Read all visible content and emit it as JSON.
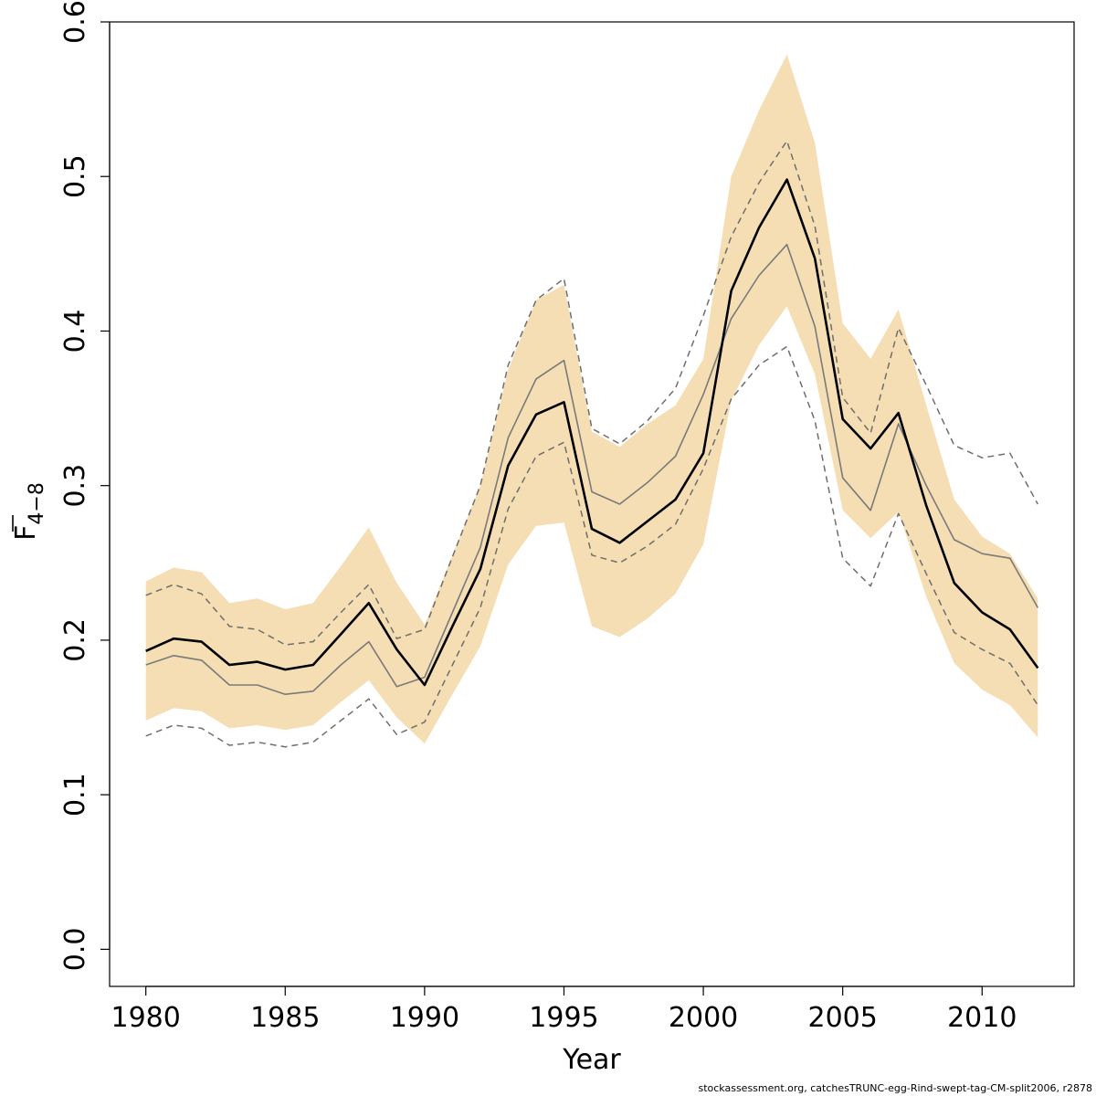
{
  "chart_data": {
    "type": "line",
    "xlabel": "Year",
    "ylabel_main": "F",
    "ylabel_sub": "4−8",
    "xlim": [
      1978.7,
      2013.3
    ],
    "ylim": [
      -0.024,
      0.6
    ],
    "xticks": [
      1980,
      1985,
      1990,
      1995,
      2000,
      2005,
      2010
    ],
    "yticks": [
      0.0,
      0.1,
      0.2,
      0.3,
      0.4,
      0.5,
      0.6
    ],
    "xtick_labels": [
      "1980",
      "1985",
      "1990",
      "1995",
      "2000",
      "2005",
      "2010"
    ],
    "ytick_labels": [
      "0.0",
      "0.1",
      "0.2",
      "0.3",
      "0.4",
      "0.5",
      "0.6"
    ],
    "grid": false,
    "legend": "none",
    "colors": {
      "band": "#f5deb3",
      "main_line": "#000000",
      "alt_line": "#7a7a7a",
      "dashed_line": "#6e6e6e",
      "frame": "#000000"
    },
    "x": [
      1980,
      1981,
      1982,
      1983,
      1984,
      1985,
      1986,
      1987,
      1988,
      1989,
      1990,
      1991,
      1992,
      1993,
      1994,
      1995,
      1996,
      1997,
      1998,
      1999,
      2000,
      2001,
      2002,
      2003,
      2004,
      2005,
      2006,
      2007,
      2008,
      2009,
      2010,
      2011,
      2012
    ],
    "band": {
      "upper": [
        0.238,
        0.247,
        0.244,
        0.224,
        0.227,
        0.22,
        0.224,
        0.248,
        0.273,
        0.237,
        0.21,
        0.255,
        0.3,
        0.375,
        0.42,
        0.43,
        0.335,
        0.325,
        0.34,
        0.352,
        0.382,
        0.5,
        0.543,
        0.579,
        0.522,
        0.405,
        0.382,
        0.414,
        0.352,
        0.291,
        0.267,
        0.256,
        0.227
      ],
      "lower": [
        0.148,
        0.156,
        0.154,
        0.143,
        0.145,
        0.142,
        0.145,
        0.16,
        0.174,
        0.15,
        0.133,
        0.165,
        0.196,
        0.249,
        0.274,
        0.276,
        0.209,
        0.202,
        0.214,
        0.23,
        0.262,
        0.355,
        0.391,
        0.416,
        0.372,
        0.284,
        0.266,
        0.283,
        0.228,
        0.185,
        0.168,
        0.158,
        0.137
      ]
    },
    "series": [
      {
        "style": "solid-thick",
        "values": [
          0.193,
          0.201,
          0.199,
          0.184,
          0.186,
          0.181,
          0.184,
          0.204,
          0.224,
          0.194,
          0.171,
          0.209,
          0.246,
          0.313,
          0.346,
          0.354,
          0.272,
          0.263,
          0.277,
          0.291,
          0.321,
          0.426,
          0.467,
          0.498,
          0.447,
          0.343,
          0.324,
          0.347,
          0.287,
          0.237,
          0.218,
          0.207,
          0.182
        ]
      },
      {
        "style": "solid-thin",
        "values": [
          0.184,
          0.19,
          0.187,
          0.171,
          0.171,
          0.165,
          0.167,
          0.184,
          0.199,
          0.17,
          0.176,
          0.218,
          0.26,
          0.331,
          0.369,
          0.381,
          0.296,
          0.288,
          0.302,
          0.319,
          0.359,
          0.408,
          0.436,
          0.456,
          0.403,
          0.305,
          0.284,
          0.34,
          0.3,
          0.265,
          0.256,
          0.253,
          0.221
        ]
      },
      {
        "style": "dashed",
        "values": [
          0.229,
          0.236,
          0.23,
          0.209,
          0.207,
          0.197,
          0.199,
          0.218,
          0.236,
          0.201,
          0.207,
          0.254,
          0.3,
          0.378,
          0.42,
          0.434,
          0.337,
          0.327,
          0.342,
          0.363,
          0.41,
          0.461,
          0.496,
          0.523,
          0.468,
          0.357,
          0.334,
          0.402,
          0.365,
          0.326,
          0.318,
          0.321,
          0.288
        ]
      },
      {
        "style": "dashed",
        "values": [
          0.138,
          0.145,
          0.143,
          0.132,
          0.134,
          0.131,
          0.134,
          0.148,
          0.162,
          0.139,
          0.147,
          0.184,
          0.221,
          0.285,
          0.319,
          0.328,
          0.255,
          0.25,
          0.261,
          0.275,
          0.311,
          0.356,
          0.378,
          0.39,
          0.342,
          0.253,
          0.235,
          0.282,
          0.243,
          0.205,
          0.194,
          0.185,
          0.158
        ]
      }
    ]
  },
  "footer": {
    "note": "stockassessment.org, catchesTRUNC-egg-Rind-swept-tag-CM-split2006, r2878"
  }
}
